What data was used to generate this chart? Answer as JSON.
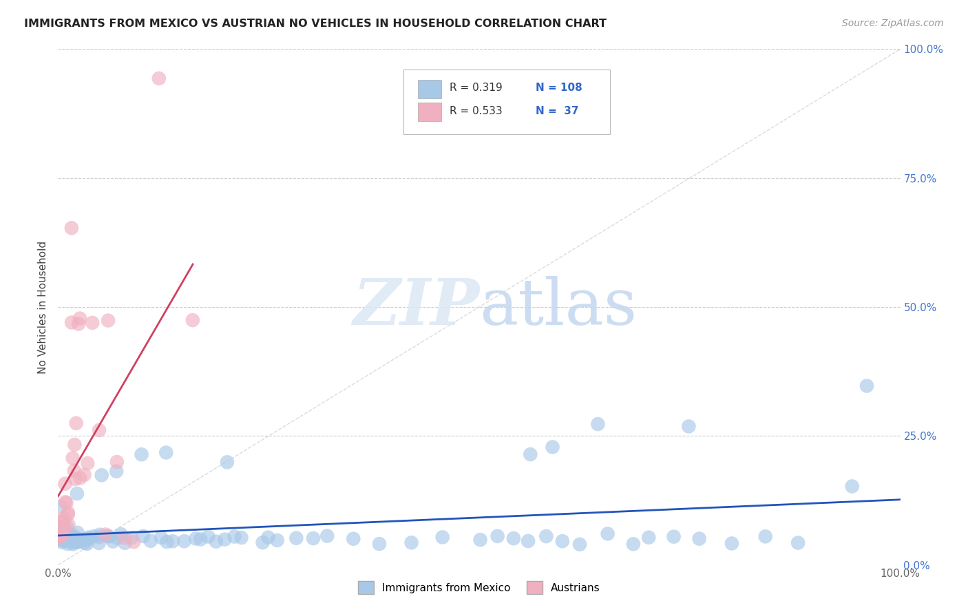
{
  "title": "IMMIGRANTS FROM MEXICO VS AUSTRIAN NO VEHICLES IN HOUSEHOLD CORRELATION CHART",
  "source": "Source: ZipAtlas.com",
  "ylabel": "No Vehicles in Household",
  "background_color": "#ffffff",
  "grid_color": "#cccccc",
  "blue_scatter_color": "#a8c8e8",
  "pink_scatter_color": "#f0b0c0",
  "blue_line_color": "#2255bb",
  "pink_line_color": "#d04060",
  "diagonal_color": "#cccccc",
  "legend_entries": [
    {
      "label": "Immigrants from Mexico",
      "color": "#a8c8e8",
      "R": "0.319",
      "N": "108"
    },
    {
      "label": "Austrians",
      "color": "#f0b0c0",
      "R": "0.533",
      "N": " 37"
    }
  ],
  "blue_x": [
    0.001,
    0.002,
    0.003,
    0.003,
    0.004,
    0.004,
    0.005,
    0.005,
    0.006,
    0.006,
    0.007,
    0.007,
    0.008,
    0.008,
    0.009,
    0.009,
    0.01,
    0.01,
    0.011,
    0.011,
    0.012,
    0.012,
    0.013,
    0.013,
    0.014,
    0.015,
    0.015,
    0.016,
    0.017,
    0.018,
    0.019,
    0.02,
    0.021,
    0.022,
    0.023,
    0.024,
    0.025,
    0.026,
    0.027,
    0.028,
    0.03,
    0.032,
    0.034,
    0.036,
    0.038,
    0.04,
    0.042,
    0.045,
    0.048,
    0.05,
    0.055,
    0.06,
    0.065,
    0.07,
    0.075,
    0.08,
    0.09,
    0.1,
    0.11,
    0.12,
    0.13,
    0.14,
    0.15,
    0.16,
    0.17,
    0.18,
    0.19,
    0.2,
    0.21,
    0.22,
    0.24,
    0.25,
    0.26,
    0.28,
    0.3,
    0.32,
    0.35,
    0.38,
    0.42,
    0.46,
    0.5,
    0.52,
    0.54,
    0.56,
    0.58,
    0.6,
    0.62,
    0.65,
    0.68,
    0.7,
    0.73,
    0.76,
    0.8,
    0.84,
    0.88,
    0.003,
    0.018,
    0.05,
    0.07,
    0.1,
    0.13,
    0.2,
    0.56,
    0.59,
    0.64,
    0.75,
    0.94,
    0.96
  ],
  "blue_y": [
    0.05,
    0.06,
    0.05,
    0.07,
    0.05,
    0.06,
    0.05,
    0.06,
    0.05,
    0.07,
    0.05,
    0.06,
    0.05,
    0.07,
    0.05,
    0.06,
    0.05,
    0.07,
    0.05,
    0.06,
    0.05,
    0.06,
    0.05,
    0.06,
    0.05,
    0.05,
    0.06,
    0.05,
    0.05,
    0.05,
    0.05,
    0.05,
    0.05,
    0.06,
    0.05,
    0.05,
    0.05,
    0.05,
    0.05,
    0.05,
    0.05,
    0.05,
    0.05,
    0.05,
    0.05,
    0.05,
    0.05,
    0.05,
    0.05,
    0.05,
    0.05,
    0.05,
    0.05,
    0.05,
    0.05,
    0.05,
    0.05,
    0.05,
    0.05,
    0.05,
    0.05,
    0.05,
    0.05,
    0.05,
    0.05,
    0.05,
    0.05,
    0.05,
    0.05,
    0.05,
    0.05,
    0.05,
    0.05,
    0.05,
    0.05,
    0.05,
    0.05,
    0.05,
    0.05,
    0.05,
    0.05,
    0.05,
    0.05,
    0.05,
    0.05,
    0.05,
    0.05,
    0.05,
    0.05,
    0.05,
    0.05,
    0.05,
    0.05,
    0.05,
    0.05,
    0.12,
    0.14,
    0.17,
    0.18,
    0.21,
    0.22,
    0.2,
    0.22,
    0.23,
    0.27,
    0.27,
    0.15,
    0.35
  ],
  "pink_x": [
    0.001,
    0.002,
    0.003,
    0.003,
    0.004,
    0.005,
    0.006,
    0.006,
    0.007,
    0.007,
    0.008,
    0.009,
    0.01,
    0.011,
    0.012,
    0.013,
    0.015,
    0.016,
    0.017,
    0.018,
    0.019,
    0.02,
    0.022,
    0.024,
    0.026,
    0.028,
    0.03,
    0.035,
    0.04,
    0.05,
    0.055,
    0.06,
    0.07,
    0.08,
    0.09,
    0.12,
    0.16
  ],
  "pink_y": [
    0.05,
    0.06,
    0.05,
    0.06,
    0.07,
    0.06,
    0.07,
    0.08,
    0.08,
    0.1,
    0.12,
    0.15,
    0.12,
    0.1,
    0.1,
    0.08,
    0.65,
    0.47,
    0.2,
    0.18,
    0.17,
    0.23,
    0.27,
    0.47,
    0.48,
    0.18,
    0.17,
    0.2,
    0.48,
    0.27,
    0.06,
    0.47,
    0.2,
    0.05,
    0.05,
    0.95,
    0.47
  ],
  "blue_reg": [
    0.038,
    0.175
  ],
  "pink_reg": [
    -0.005,
    3.0
  ]
}
